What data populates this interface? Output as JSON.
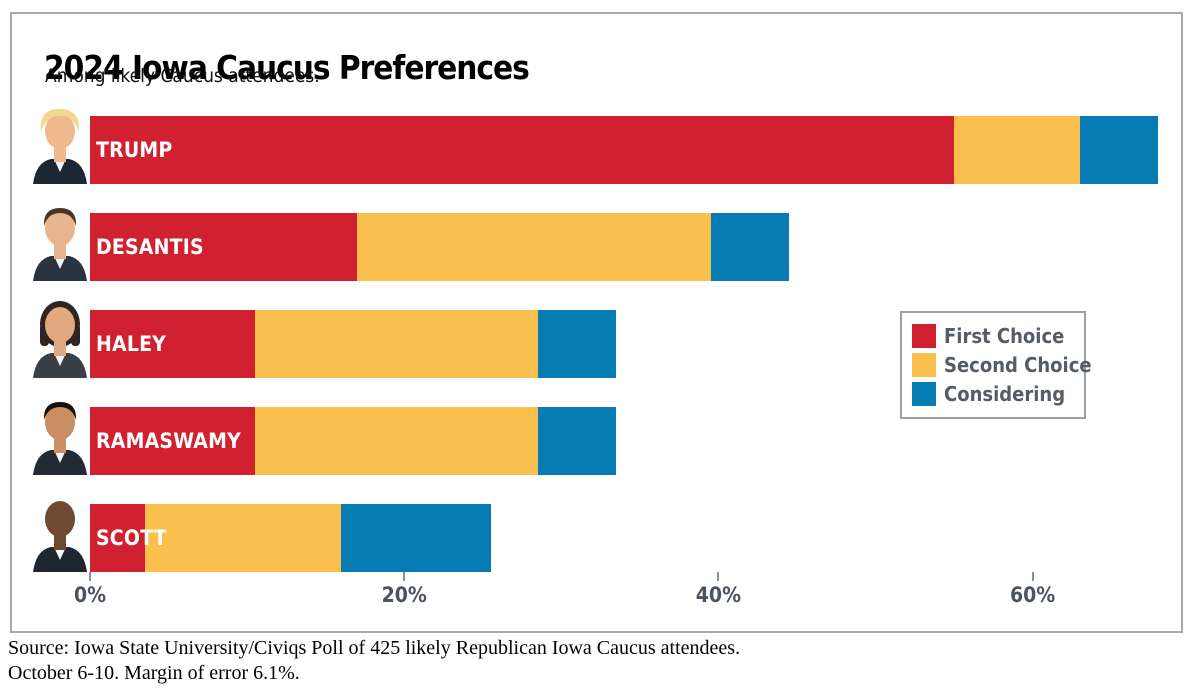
{
  "header": {
    "title": "2024 Iowa Caucus Preferences",
    "subtitle": "Among likely Caucus attendees."
  },
  "legend": {
    "items": [
      {
        "label": "First Choice",
        "color": "#d12130"
      },
      {
        "label": "Second Choice",
        "color": "#fbbf4e"
      },
      {
        "label": "Considering",
        "color": "#077cb4"
      }
    ]
  },
  "axis": {
    "ticks": [
      {
        "label": "0%",
        "value": 0
      },
      {
        "label": "20%",
        "value": 20
      },
      {
        "label": "40%",
        "value": 40
      },
      {
        "label": "60%",
        "value": 60
      }
    ]
  },
  "footer": {
    "line1": "Source: Iowa State University/Civiqs Poll of 425 likely Republican Iowa Caucus attendees.",
    "line2": "October 6-10. Margin of error 6.1%."
  },
  "chart_data": {
    "type": "bar",
    "orientation": "horizontal",
    "stacked": true,
    "title": "2024 Iowa Caucus Preferences",
    "subtitle": "Among likely Caucus attendees.",
    "categories": [
      "TRUMP",
      "DESANTIS",
      "HALEY",
      "RAMASWAMY",
      "SCOTT"
    ],
    "series": [
      {
        "name": "First Choice",
        "color": "#d12130",
        "values": [
          55,
          17,
          10.5,
          10.5,
          3.5
        ]
      },
      {
        "name": "Second Choice",
        "color": "#fbbf4e",
        "values": [
          8,
          22.5,
          18,
          18,
          12.5
        ]
      },
      {
        "name": "Considering",
        "color": "#077cb4",
        "values": [
          5,
          5,
          5,
          5,
          9.5
        ]
      }
    ],
    "totals": [
      68,
      44.5,
      33.5,
      33.5,
      25.5
    ],
    "xlim": [
      0,
      68
    ],
    "x_ticks": [
      0,
      20,
      40,
      60
    ],
    "grid": false,
    "legend_position": "middle-right"
  },
  "candidates": [
    {
      "name": "TRUMP",
      "photo": "trump-headshot",
      "skin": "#f0b98c",
      "hair": "#f3d78d",
      "suit": "#1c2734",
      "style": "swoop"
    },
    {
      "name": "DESANTIS",
      "photo": "desantis-headshot",
      "skin": "#e8b48e",
      "hair": "#4a3526",
      "suit": "#2a3340",
      "style": "short"
    },
    {
      "name": "HALEY",
      "photo": "haley-headshot",
      "skin": "#e2a981",
      "hair": "#2e2420",
      "suit": "#3a3f46",
      "style": "long"
    },
    {
      "name": "RAMASWAMY",
      "photo": "ramaswamy-headshot",
      "skin": "#c98e62",
      "hair": "#17120e",
      "suit": "#232a33",
      "style": "short"
    },
    {
      "name": "SCOTT",
      "photo": "scott-headshot",
      "skin": "#6e4a33",
      "hair": "#3a2a1e",
      "suit": "#1e2630",
      "style": "bald"
    }
  ]
}
